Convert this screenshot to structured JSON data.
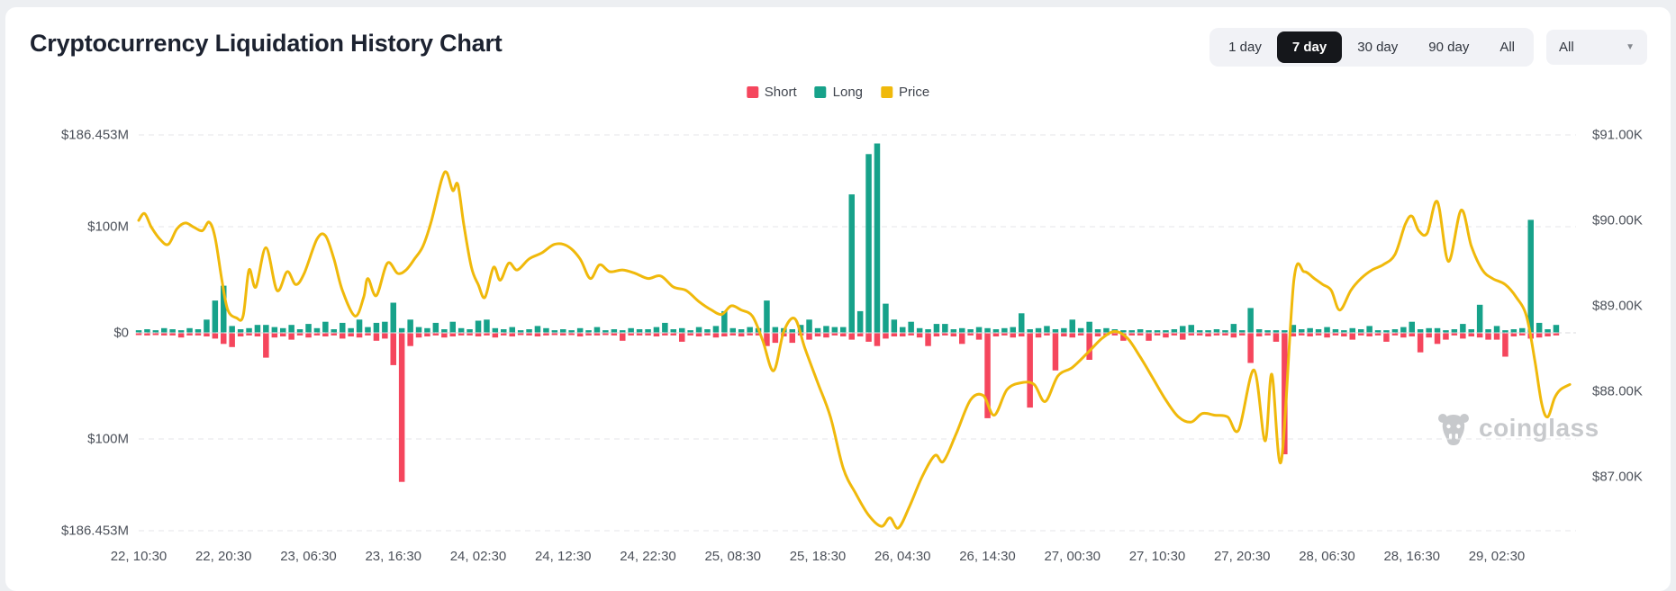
{
  "header": {
    "title": "Cryptocurrency Liquidation History Chart",
    "range_buttons": [
      {
        "label": "1 day",
        "active": false
      },
      {
        "label": "7 day",
        "active": true
      },
      {
        "label": "30 day",
        "active": false
      },
      {
        "label": "90 day",
        "active": false
      },
      {
        "label": "All",
        "active": false
      }
    ],
    "dropdown": {
      "value": "All",
      "icon": "chevron-down-icon"
    }
  },
  "legend": {
    "items": [
      {
        "label": "Short",
        "color": "#f5465d"
      },
      {
        "label": "Long",
        "color": "#17a28a"
      },
      {
        "label": "Price",
        "color": "#f0b90b"
      }
    ]
  },
  "watermark": {
    "text": "coinglass",
    "icon": "coinglass-bull-icon",
    "color": "#c7c9cc"
  },
  "chart_data": {
    "type": "bar",
    "subtype": "dual-axis liquidation bars with price line",
    "bar_interval_hours": 1,
    "x_start_label": "22, 10:30",
    "x_axis_labels": [
      "22, 10:30",
      "22, 20:30",
      "23, 06:30",
      "23, 16:30",
      "24, 02:30",
      "24, 12:30",
      "24, 22:30",
      "25, 08:30",
      "25, 18:30",
      "26, 04:30",
      "26, 14:30",
      "27, 00:30",
      "27, 10:30",
      "27, 20:30",
      "28, 06:30",
      "28, 16:30",
      "29, 02:30"
    ],
    "x_label_every_hours": 10,
    "left_axis": {
      "title": "Liquidations (USD)",
      "labels": [
        "$186.453M",
        "$100M",
        "$0",
        "$100M",
        "$186.453M"
      ],
      "max_million": 186.453
    },
    "right_axis": {
      "title": "Price",
      "labels": [
        "$91.00K",
        "$90.00K",
        "$89.00K",
        "$88.00K",
        "$87.00K"
      ],
      "min_k": 87,
      "max_k": 91
    },
    "grid": "dashed horizontal at left-axis rows",
    "legend_position": "top-center",
    "series": [
      {
        "name": "Long",
        "type": "bar",
        "color": "#17a28a",
        "unit": "USD million",
        "values": [
          2,
          3,
          2,
          4,
          3,
          2,
          4,
          3,
          12,
          30,
          44,
          6,
          3,
          4,
          7,
          7,
          5,
          4,
          7,
          3,
          8,
          4,
          10,
          3,
          9,
          4,
          12,
          5,
          9,
          10,
          28,
          4,
          12,
          5,
          4,
          9,
          3,
          10,
          4,
          3,
          11,
          12,
          4,
          3,
          5,
          2,
          3,
          6,
          4,
          2,
          3,
          2,
          4,
          2,
          5,
          2,
          3,
          2,
          4,
          3,
          3,
          5,
          9,
          3,
          4,
          2,
          5,
          3,
          6,
          20,
          4,
          3,
          5,
          4,
          30,
          5,
          4,
          3,
          7,
          12,
          4,
          6,
          5,
          5,
          130,
          20,
          168,
          178,
          27,
          12,
          5,
          10,
          4,
          3,
          8,
          8,
          3,
          4,
          3,
          5,
          4,
          3,
          4,
          5,
          18,
          3,
          4,
          6,
          3,
          4,
          12,
          4,
          10,
          3,
          4,
          3,
          2,
          2,
          3,
          2,
          2,
          2,
          3,
          6,
          7,
          2,
          2,
          3,
          2,
          8,
          2,
          23,
          3,
          2,
          2,
          2,
          7,
          3,
          4,
          3,
          5,
          3,
          2,
          4,
          3,
          6,
          2,
          2,
          3,
          5,
          10,
          3,
          4,
          4,
          2,
          3,
          8,
          3,
          26,
          3,
          6,
          2,
          3,
          4,
          106,
          9,
          3,
          7
        ]
      },
      {
        "name": "Short",
        "type": "bar",
        "color": "#f5465d",
        "unit": "USD million",
        "values": [
          -1,
          -2,
          -1,
          -2,
          -2,
          -4,
          -2,
          -2,
          -3,
          -5,
          -10,
          -13,
          -3,
          -2,
          -3,
          -23,
          -4,
          -3,
          -6,
          -2,
          -4,
          -2,
          -3,
          -2,
          -5,
          -3,
          -4,
          -2,
          -7,
          -5,
          -30,
          -140,
          -12,
          -4,
          -3,
          -2,
          -4,
          -3,
          -2,
          -2,
          -3,
          -2,
          -4,
          -2,
          -3,
          -1,
          -2,
          -3,
          -2,
          -1,
          -2,
          -1,
          -3,
          -2,
          -2,
          -1,
          -2,
          -7,
          -2,
          -2,
          -2,
          -3,
          -2,
          -2,
          -8,
          -2,
          -3,
          -2,
          -4,
          -3,
          -2,
          -3,
          -2,
          -2,
          -12,
          -9,
          -3,
          -9,
          -2,
          -6,
          -3,
          -4,
          -2,
          -3,
          -6,
          -3,
          -8,
          -12,
          -5,
          -3,
          -3,
          -2,
          -4,
          -12,
          -3,
          -2,
          -3,
          -10,
          -2,
          -6,
          -80,
          -3,
          -2,
          -4,
          -3,
          -70,
          -4,
          -2,
          -35,
          -3,
          -4,
          -2,
          -25,
          -3,
          -2,
          -2,
          -7,
          -2,
          -2,
          -7,
          -2,
          -4,
          -2,
          -6,
          -2,
          -2,
          -3,
          -2,
          -2,
          -4,
          -2,
          -28,
          -3,
          -2,
          -8,
          -114,
          -3,
          -2,
          -3,
          -2,
          -4,
          -2,
          -3,
          -6,
          -2,
          -3,
          -2,
          -8,
          -2,
          -4,
          -3,
          -18,
          -4,
          -10,
          -6,
          -2,
          -5,
          -3,
          -4,
          -6,
          -6,
          -22,
          -3,
          -2,
          -5,
          -4,
          -3,
          -2
        ]
      },
      {
        "name": "Price",
        "type": "line",
        "color": "#f0b90b",
        "axis": "right",
        "unit": "USD thousand",
        "points": [
          [
            0,
            90.0
          ],
          [
            0.7,
            90.08
          ],
          [
            1.5,
            89.92
          ],
          [
            2.5,
            89.78
          ],
          [
            3.5,
            89.72
          ],
          [
            4.5,
            89.9
          ],
          [
            5.5,
            89.97
          ],
          [
            6.5,
            89.92
          ],
          [
            7.5,
            89.88
          ],
          [
            8.3,
            89.98
          ],
          [
            9,
            89.8
          ],
          [
            9.8,
            89.3
          ],
          [
            10.5,
            88.95
          ],
          [
            11.5,
            88.86
          ],
          [
            12.3,
            88.88
          ],
          [
            13,
            89.42
          ],
          [
            13.8,
            89.22
          ],
          [
            15,
            89.68
          ],
          [
            16.3,
            89.18
          ],
          [
            17.5,
            89.4
          ],
          [
            18.5,
            89.25
          ],
          [
            19.5,
            89.38
          ],
          [
            21,
            89.78
          ],
          [
            22,
            89.82
          ],
          [
            23,
            89.55
          ],
          [
            24,
            89.18
          ],
          [
            25.5,
            88.88
          ],
          [
            26.5,
            89.1
          ],
          [
            27,
            89.32
          ],
          [
            28,
            89.12
          ],
          [
            29.3,
            89.5
          ],
          [
            30.5,
            89.38
          ],
          [
            31.5,
            89.42
          ],
          [
            32.5,
            89.55
          ],
          [
            33.5,
            89.7
          ],
          [
            34.5,
            90.0
          ],
          [
            35.7,
            90.48
          ],
          [
            36.3,
            90.56
          ],
          [
            37,
            90.35
          ],
          [
            37.6,
            90.42
          ],
          [
            38.3,
            89.95
          ],
          [
            39.2,
            89.45
          ],
          [
            40,
            89.25
          ],
          [
            40.8,
            89.1
          ],
          [
            41.8,
            89.45
          ],
          [
            42.6,
            89.3
          ],
          [
            43.6,
            89.5
          ],
          [
            44.6,
            89.42
          ],
          [
            46,
            89.55
          ],
          [
            47.5,
            89.62
          ],
          [
            49,
            89.72
          ],
          [
            50.5,
            89.7
          ],
          [
            52,
            89.55
          ],
          [
            53.2,
            89.32
          ],
          [
            54.3,
            89.48
          ],
          [
            55.5,
            89.4
          ],
          [
            57,
            89.42
          ],
          [
            58.5,
            89.38
          ],
          [
            60,
            89.32
          ],
          [
            61.5,
            89.35
          ],
          [
            63,
            89.22
          ],
          [
            64.5,
            89.18
          ],
          [
            66,
            89.05
          ],
          [
            67.5,
            88.95
          ],
          [
            68.7,
            88.9
          ],
          [
            69.8,
            89.0
          ],
          [
            71,
            88.95
          ],
          [
            72.3,
            88.88
          ],
          [
            73.5,
            88.6
          ],
          [
            74.8,
            88.24
          ],
          [
            76,
            88.7
          ],
          [
            77.3,
            88.85
          ],
          [
            78.5,
            88.5
          ],
          [
            80,
            88.1
          ],
          [
            81.5,
            87.7
          ],
          [
            83,
            87.1
          ],
          [
            84.5,
            86.8
          ],
          [
            86,
            86.55
          ],
          [
            87.5,
            86.42
          ],
          [
            88.5,
            86.52
          ],
          [
            89.5,
            86.4
          ],
          [
            90.8,
            86.65
          ],
          [
            92.3,
            87.0
          ],
          [
            93.8,
            87.25
          ],
          [
            94.8,
            87.18
          ],
          [
            96.3,
            87.5
          ],
          [
            98,
            87.9
          ],
          [
            99.5,
            87.95
          ],
          [
            100.8,
            87.72
          ],
          [
            102.3,
            88.02
          ],
          [
            104,
            88.1
          ],
          [
            105.5,
            88.08
          ],
          [
            106.8,
            87.88
          ],
          [
            108.3,
            88.18
          ],
          [
            110,
            88.28
          ],
          [
            111.8,
            88.45
          ],
          [
            113.5,
            88.62
          ],
          [
            115,
            88.7
          ],
          [
            116.5,
            88.62
          ],
          [
            118,
            88.4
          ],
          [
            119.5,
            88.15
          ],
          [
            121,
            87.9
          ],
          [
            122.5,
            87.7
          ],
          [
            124,
            87.64
          ],
          [
            125.3,
            87.74
          ],
          [
            126.8,
            87.72
          ],
          [
            128.3,
            87.7
          ],
          [
            129.6,
            87.55
          ],
          [
            131.4,
            88.25
          ],
          [
            132.7,
            87.42
          ],
          [
            133.5,
            88.2
          ],
          [
            134.6,
            87.18
          ],
          [
            136.1,
            89.3
          ],
          [
            137.3,
            89.4
          ],
          [
            138.5,
            89.32
          ],
          [
            139.5,
            89.25
          ],
          [
            140.5,
            89.18
          ],
          [
            141.5,
            88.95
          ],
          [
            142.8,
            89.18
          ],
          [
            144,
            89.32
          ],
          [
            145.3,
            89.42
          ],
          [
            146.6,
            89.48
          ],
          [
            148,
            89.6
          ],
          [
            149.2,
            89.95
          ],
          [
            150,
            90.05
          ],
          [
            150.8,
            89.88
          ],
          [
            151.8,
            89.85
          ],
          [
            153,
            90.22
          ],
          [
            154.3,
            89.52
          ],
          [
            155.8,
            90.12
          ],
          [
            157,
            89.7
          ],
          [
            158.3,
            89.42
          ],
          [
            159.5,
            89.32
          ],
          [
            161,
            89.25
          ],
          [
            162.3,
            89.1
          ],
          [
            163.5,
            88.88
          ],
          [
            164.5,
            88.35
          ],
          [
            165.3,
            87.85
          ],
          [
            166,
            87.7
          ],
          [
            166.8,
            87.92
          ],
          [
            167.5,
            88.02
          ],
          [
            168.6,
            88.08
          ]
        ]
      }
    ]
  }
}
